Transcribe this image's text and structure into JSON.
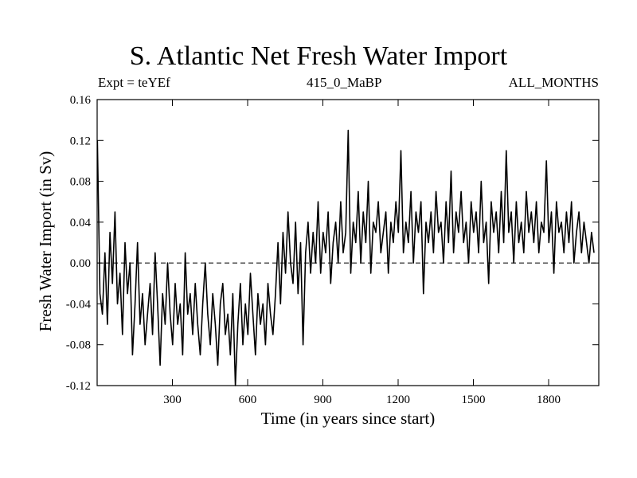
{
  "chart_data": {
    "type": "line",
    "title": "S. Atlantic Net Fresh Water Import",
    "subtitle_left": "Expt = teYEf",
    "subtitle_center": "415_0_MaBP",
    "subtitle_right": "ALL_MONTHS",
    "xlabel": "Time (in years since start)",
    "ylabel": "Fresh Water Import (in Sv)",
    "xlim": [
      0,
      2000
    ],
    "ylim": [
      -0.12,
      0.16
    ],
    "xticks": [
      300,
      600,
      900,
      1200,
      1500,
      1800
    ],
    "xtick_labels": [
      "300",
      "600",
      "900",
      "1200",
      "1500",
      "1800"
    ],
    "yticks": [
      -0.12,
      -0.08,
      -0.04,
      0.0,
      0.04,
      0.08,
      0.12,
      0.16
    ],
    "ytick_labels": [
      "-0.12",
      "-0.08",
      "-0.04",
      "0.00",
      "0.04",
      "0.08",
      "0.12",
      "0.16"
    ],
    "reference_line": 0.0,
    "series": [
      {
        "name": "Fresh water import",
        "x_start": 1,
        "x_step": 10,
        "values": [
          0.12,
          -0.03,
          -0.05,
          0.01,
          -0.06,
          0.03,
          -0.02,
          0.05,
          -0.04,
          -0.01,
          -0.07,
          0.02,
          -0.03,
          0.0,
          -0.09,
          -0.04,
          0.02,
          -0.06,
          -0.03,
          -0.08,
          -0.05,
          -0.02,
          -0.07,
          0.01,
          -0.04,
          -0.1,
          -0.03,
          -0.06,
          0.0,
          -0.05,
          -0.08,
          -0.02,
          -0.06,
          -0.04,
          -0.09,
          0.01,
          -0.05,
          -0.03,
          -0.07,
          -0.02,
          -0.06,
          -0.09,
          -0.04,
          0.0,
          -0.05,
          -0.08,
          -0.03,
          -0.06,
          -0.1,
          -0.04,
          -0.02,
          -0.07,
          -0.05,
          -0.09,
          -0.03,
          -0.12,
          -0.06,
          -0.02,
          -0.08,
          -0.04,
          -0.07,
          -0.01,
          -0.05,
          -0.09,
          -0.03,
          -0.06,
          -0.04,
          -0.08,
          -0.02,
          -0.05,
          -0.07,
          -0.03,
          0.02,
          -0.04,
          0.03,
          -0.01,
          0.05,
          0.0,
          -0.02,
          0.04,
          -0.03,
          0.02,
          -0.08,
          0.01,
          0.04,
          -0.01,
          0.03,
          0.0,
          0.06,
          -0.01,
          0.03,
          0.01,
          0.05,
          -0.02,
          0.02,
          0.04,
          0.0,
          0.06,
          0.01,
          0.03,
          0.13,
          -0.01,
          0.04,
          0.02,
          0.07,
          0.0,
          0.05,
          0.02,
          0.08,
          -0.01,
          0.04,
          0.03,
          0.06,
          0.01,
          0.03,
          0.05,
          -0.01,
          0.04,
          0.02,
          0.06,
          0.03,
          0.11,
          0.01,
          0.04,
          0.02,
          0.07,
          0.0,
          0.05,
          0.03,
          0.06,
          -0.03,
          0.04,
          0.02,
          0.05,
          0.01,
          0.07,
          0.03,
          0.04,
          0.0,
          0.06,
          0.02,
          0.09,
          0.01,
          0.05,
          0.03,
          0.07,
          0.02,
          0.04,
          0.0,
          0.06,
          0.03,
          0.05,
          0.01,
          0.08,
          0.02,
          0.04,
          -0.02,
          0.06,
          0.03,
          0.05,
          0.01,
          0.07,
          0.02,
          0.11,
          0.03,
          0.05,
          0.0,
          0.06,
          0.02,
          0.04,
          0.01,
          0.07,
          0.03,
          0.05,
          0.02,
          0.06,
          0.01,
          0.04,
          0.03,
          0.1,
          0.02,
          0.05,
          -0.01,
          0.06,
          0.03,
          0.04,
          0.01,
          0.05,
          0.02,
          0.06,
          0.0,
          0.03,
          0.05,
          0.01,
          0.04,
          0.02,
          0.0,
          0.03,
          0.01
        ]
      }
    ]
  }
}
